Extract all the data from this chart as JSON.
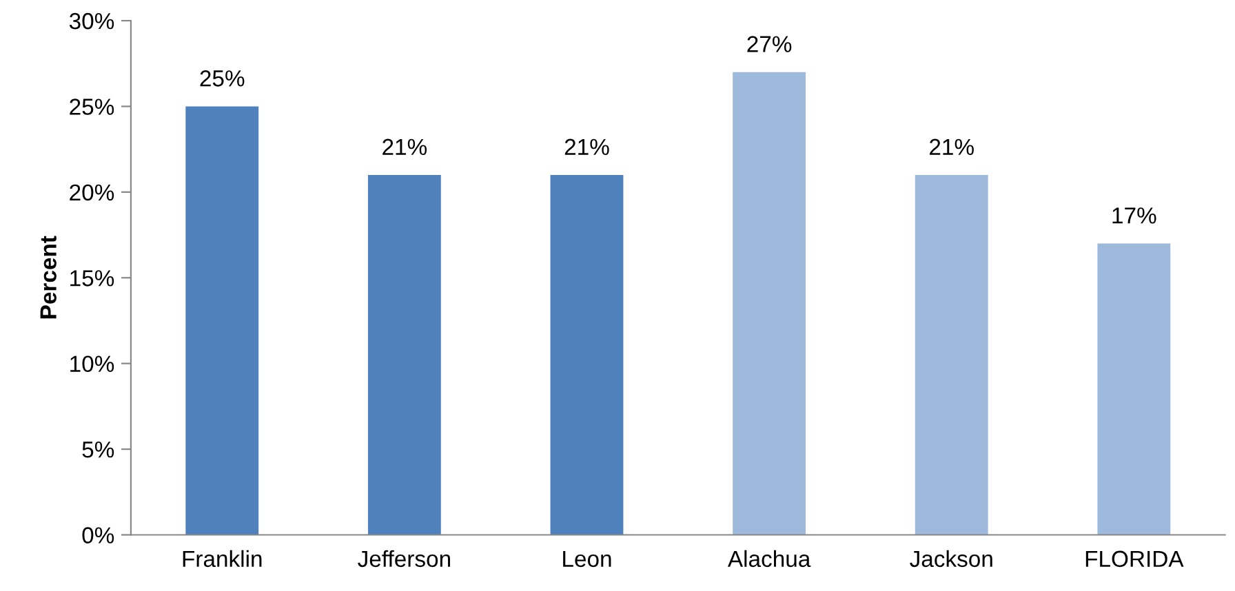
{
  "chart_data": {
    "type": "bar",
    "ylabel": "Percent",
    "categories": [
      "Franklin",
      "Jefferson",
      "Leon",
      "Alachua",
      "Jackson",
      "FLORIDA"
    ],
    "values": [
      25,
      21,
      21,
      27,
      21,
      17
    ],
    "colors": [
      "#4f81bd",
      "#4f81bd",
      "#4f81bd",
      "#9db9dc",
      "#9db9dc",
      "#9db9dc"
    ],
    "value_labels": [
      "25%",
      "21%",
      "21%",
      "27%",
      "21%",
      "17%"
    ],
    "ylim": [
      0,
      30
    ],
    "yticks": [
      {
        "value": 0,
        "label": "0%"
      },
      {
        "value": 5,
        "label": "5%"
      },
      {
        "value": 10,
        "label": "10%"
      },
      {
        "value": 15,
        "label": "15%"
      },
      {
        "value": 20,
        "label": "20%"
      },
      {
        "value": 25,
        "label": "25%"
      },
      {
        "value": 30,
        "label": "30%"
      }
    ],
    "grid": false,
    "legend": false
  }
}
